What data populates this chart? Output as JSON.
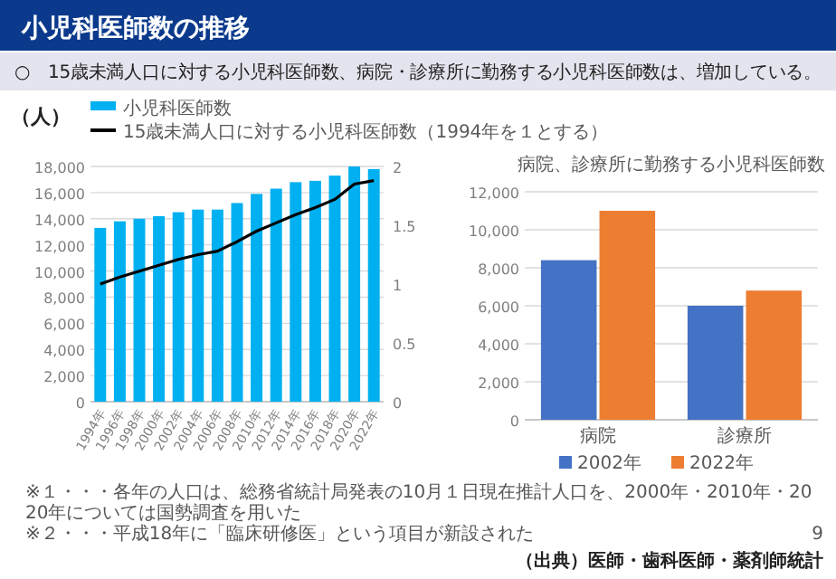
{
  "chart_data": [
    {
      "type": "bar",
      "title": "小児科医師数の推移",
      "subtitle": "○　15歳未満人口に対する小児科医師数、病院・診療所に勤務する小児科医師数は、増加している。",
      "ylabel": "（人）",
      "categories": [
        "1994年",
        "1996年",
        "1998年",
        "2000年",
        "2002年",
        "2004年",
        "2006年",
        "2008年",
        "2010年",
        "2012年",
        "2014年",
        "2016年",
        "2018年",
        "2020年",
        "2022年"
      ],
      "series": [
        {
          "name": "小児科医師数",
          "type": "bar",
          "color": "#00b0f0",
          "values": [
            13300,
            13800,
            14000,
            14200,
            14500,
            14700,
            14700,
            15200,
            15900,
            16300,
            16800,
            16900,
            17300,
            18000,
            17800
          ]
        },
        {
          "name": "15歳未満人口に対する小児科医師数（1994年を１とする）",
          "type": "line",
          "axis": "y2",
          "color": "#000000",
          "values": [
            1.0,
            1.06,
            1.11,
            1.16,
            1.21,
            1.25,
            1.28,
            1.36,
            1.45,
            1.52,
            1.59,
            1.65,
            1.72,
            1.85,
            1.88
          ]
        }
      ],
      "ylim": [
        0,
        18000
      ],
      "yticks": [
        0,
        {
          "value": 2000,
          "label": "2,000"
        },
        {
          "value": 4000,
          "label": "4,000"
        },
        {
          "value": 6000,
          "label": "6,000"
        },
        {
          "value": 8000,
          "label": "8,000"
        },
        {
          "value": 10000,
          "label": "10,000"
        },
        {
          "value": 12000,
          "label": "12,000"
        },
        {
          "value": 14000,
          "label": "14,000"
        },
        {
          "value": 16000,
          "label": "16,000"
        },
        {
          "value": 18000,
          "label": "18,000"
        }
      ],
      "y2lim": [
        0,
        2
      ],
      "y2ticks": [
        0,
        0.5,
        1,
        1.5,
        2
      ],
      "grid": "y",
      "legend": "top",
      "annotations": [
        "※１・・・各年の人口は、総務省統計局発表の10月１日現在推計人口を、2000年・2010年・2020年については国勢調査を用いた",
        "※２・・・平成18年に「臨床研修医」という項目が新設された",
        "9",
        "（出典）医師・歯科医師・薬剤師統計"
      ]
    },
    {
      "type": "bar",
      "title": "病院、診療所に勤務する小児科医師数",
      "categories": [
        "病院",
        "診療所"
      ],
      "series": [
        {
          "name": "2002年",
          "color": "#4472c4",
          "values": [
            8400,
            6000
          ]
        },
        {
          "name": "2022年",
          "color": "#ed7d31",
          "values": [
            11000,
            6800
          ]
        }
      ],
      "ylim": [
        0,
        12000
      ],
      "yticks": [
        0,
        {
          "value": 2000,
          "label": "2,000"
        },
        {
          "value": 4000,
          "label": "4,000"
        },
        {
          "value": 6000,
          "label": "6,000"
        },
        {
          "value": 8000,
          "label": "8,000"
        },
        {
          "value": 10000,
          "label": "10,000"
        },
        {
          "value": 12000,
          "label": "12,000"
        }
      ],
      "grid": "y",
      "legend": "bottom"
    }
  ]
}
